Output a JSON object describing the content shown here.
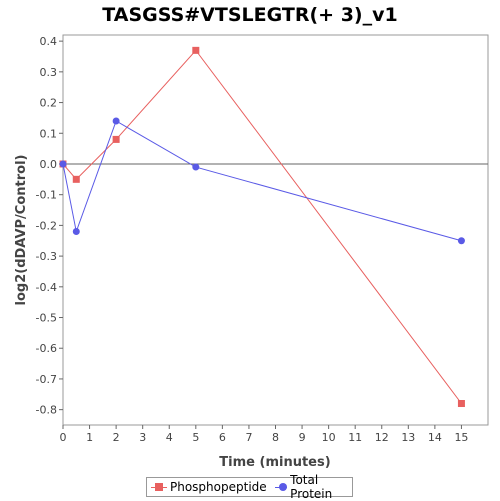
{
  "chart_data": {
    "type": "line",
    "title": "TASGSS#VTSLEGTR(+ 3)_v1",
    "xlabel": "Time (minutes)",
    "ylabel": "log2(dDAVP/Control)",
    "xlim": [
      0,
      16
    ],
    "ylim": [
      -0.85,
      0.42
    ],
    "xticks": [
      0,
      1,
      2,
      3,
      4,
      5,
      6,
      7,
      8,
      9,
      10,
      11,
      12,
      13,
      14,
      15
    ],
    "yticks": [
      0.4,
      0.3,
      0.2,
      0.1,
      0.0,
      -0.1,
      -0.2,
      -0.3,
      -0.4,
      -0.5,
      -0.6,
      -0.7,
      -0.8
    ],
    "ytick_labels": [
      "0.4",
      "0.3",
      "0.2",
      "0.1",
      "0.0",
      "-0.1",
      "-0.2",
      "-0.3",
      "-0.4",
      "-0.5",
      "-0.6",
      "-0.7",
      "-0.8"
    ],
    "zero_line": true,
    "grid": false,
    "legend_position": "bottom",
    "series": [
      {
        "name": "Phosphopeptide",
        "color": "#e8605f",
        "marker": "square",
        "x": [
          0,
          0.5,
          2,
          5,
          15
        ],
        "y": [
          0.0,
          -0.05,
          0.08,
          0.37,
          -0.78
        ]
      },
      {
        "name": "Total Protein",
        "color": "#5a5ae6",
        "marker": "circle",
        "x": [
          0,
          0.5,
          2,
          5,
          15
        ],
        "y": [
          0.0,
          -0.22,
          0.14,
          -0.01,
          -0.25
        ]
      }
    ]
  }
}
